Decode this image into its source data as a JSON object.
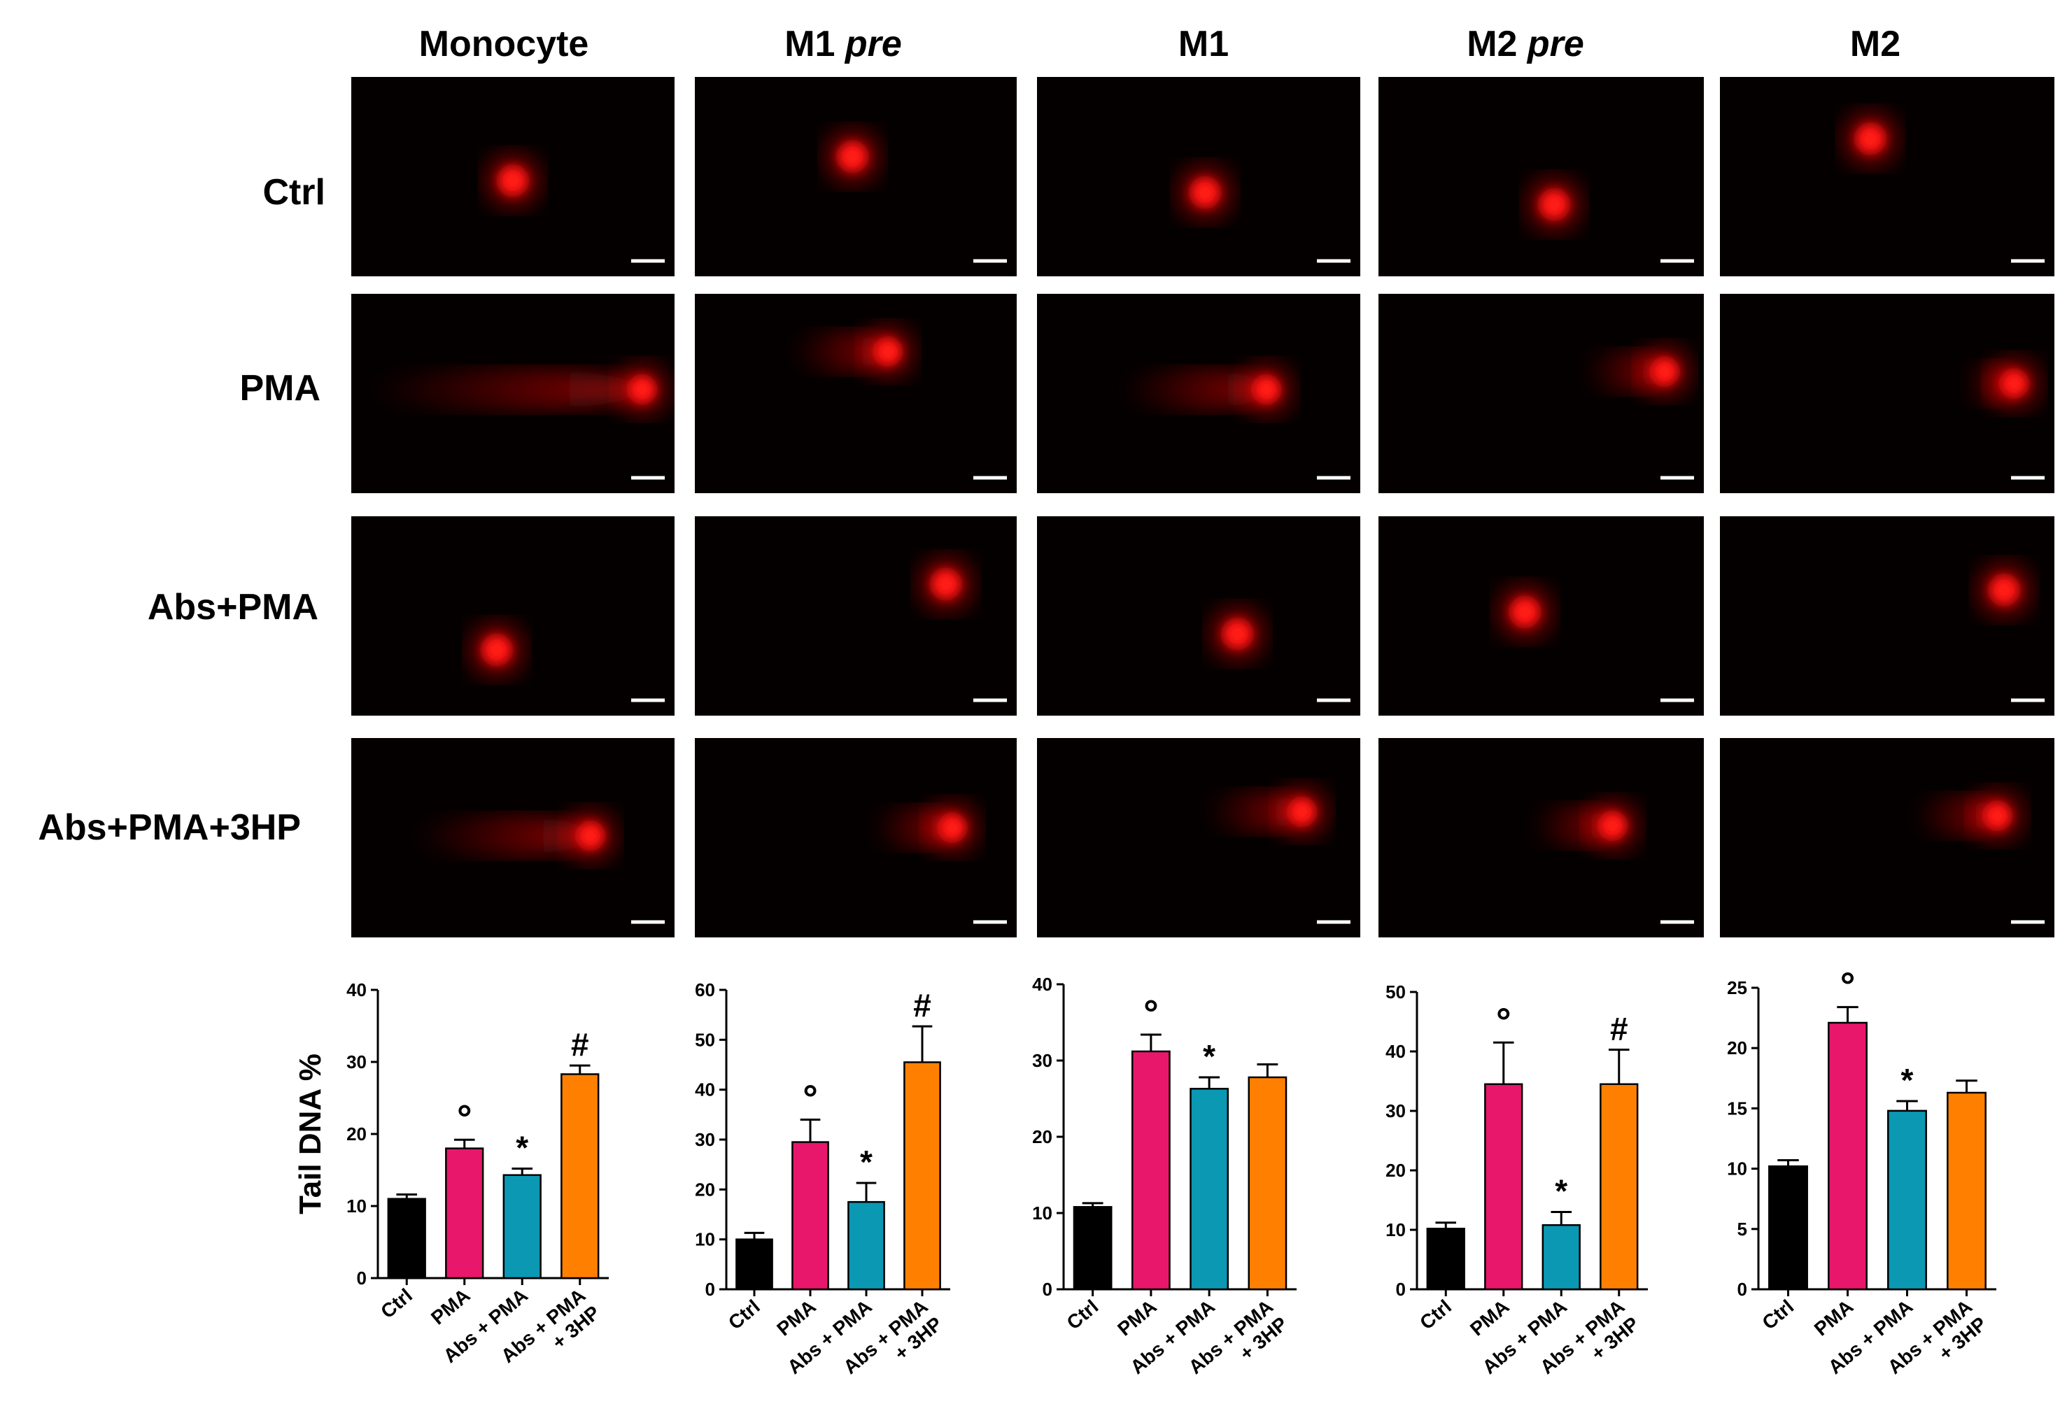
{
  "figure": {
    "columns": [
      {
        "label": "Monocyte",
        "italic": ""
      },
      {
        "label": "M1 ",
        "italic": "pre"
      },
      {
        "label": "M1",
        "italic": ""
      },
      {
        "label": "M2 ",
        "italic": "pre"
      },
      {
        "label": "M2",
        "italic": ""
      }
    ],
    "rows": [
      "Ctrl",
      "PMA",
      "Abs+PMA",
      "Abs+PMA+3HP"
    ],
    "colors": {
      "Ctrl": "#000000",
      "PMA": "#e8176b",
      "Abs + PMA": "#0b98b3",
      "Abs + PMA + 3HP": "#ff8000",
      "background": "#050000",
      "nucleus": "#ff1a1a"
    },
    "micrographs": [
      [
        {
          "head": [
            0.5,
            0.52
          ],
          "tail": 0.0
        },
        {
          "head": [
            0.49,
            0.4
          ],
          "tail": 0.0
        },
        {
          "head": [
            0.52,
            0.58
          ],
          "tail": 0.0
        },
        {
          "head": [
            0.54,
            0.64
          ],
          "tail": 0.0
        },
        {
          "head": [
            0.45,
            0.31
          ],
          "tail": 0.0
        }
      ],
      [
        {
          "head": [
            0.9,
            0.48
          ],
          "tail": 0.85
        },
        {
          "head": [
            0.6,
            0.29
          ],
          "tail": 0.3
        },
        {
          "head": [
            0.71,
            0.48
          ],
          "tail": 0.45
        },
        {
          "head": [
            0.88,
            0.39
          ],
          "tail": 0.25
        },
        {
          "head": [
            0.88,
            0.45
          ],
          "tail": 0.15
        }
      ],
      [
        {
          "head": [
            0.45,
            0.67
          ],
          "tail": 0.0
        },
        {
          "head": [
            0.78,
            0.34
          ],
          "tail": 0.0
        },
        {
          "head": [
            0.62,
            0.59
          ],
          "tail": 0.0
        },
        {
          "head": [
            0.45,
            0.48
          ],
          "tail": 0.0
        },
        {
          "head": [
            0.85,
            0.37
          ],
          "tail": 0.0
        }
      ],
      [
        {
          "head": [
            0.74,
            0.49
          ],
          "tail": 0.55
        },
        {
          "head": [
            0.8,
            0.45
          ],
          "tail": 0.25
        },
        {
          "head": [
            0.82,
            0.37
          ],
          "tail": 0.3
        },
        {
          "head": [
            0.72,
            0.44
          ],
          "tail": 0.25
        },
        {
          "head": [
            0.83,
            0.39
          ],
          "tail": 0.25
        }
      ]
    ]
  },
  "chart_data": [
    {
      "type": "bar",
      "panel": "Monocyte",
      "ylabel": "Tail DNA %",
      "categories": [
        "Ctrl",
        "PMA",
        "Abs + PMA",
        "Abs + PMA + 3HP"
      ],
      "values": [
        11,
        18,
        14.3,
        28.3
      ],
      "errors": [
        0.6,
        1.2,
        0.9,
        1.2
      ],
      "annotations": [
        "",
        "°",
        "*",
        "#"
      ],
      "ylim": [
        0,
        40
      ],
      "yticks": [
        0,
        10,
        20,
        30,
        40
      ],
      "grid": false
    },
    {
      "type": "bar",
      "panel": "M1 pre",
      "ylabel": "",
      "categories": [
        "Ctrl",
        "PMA",
        "Abs + PMA",
        "Abs + PMA + 3HP"
      ],
      "values": [
        10,
        29.5,
        17.5,
        45.5
      ],
      "errors": [
        1.3,
        4.5,
        3.8,
        7.2
      ],
      "annotations": [
        "",
        "°",
        "*",
        "#"
      ],
      "ylim": [
        0,
        60
      ],
      "yticks": [
        0,
        10,
        20,
        30,
        40,
        50,
        60
      ],
      "grid": false
    },
    {
      "type": "bar",
      "panel": "M1",
      "ylabel": "",
      "categories": [
        "Ctrl",
        "PMA",
        "Abs + PMA",
        "Abs + PMA + 3HP"
      ],
      "values": [
        10.8,
        31.2,
        26.3,
        27.8
      ],
      "errors": [
        0.5,
        2.2,
        1.5,
        1.7
      ],
      "annotations": [
        "",
        "°",
        "*",
        ""
      ],
      "ylim": [
        0,
        40
      ],
      "yticks": [
        0,
        10,
        20,
        30,
        40
      ],
      "grid": false
    },
    {
      "type": "bar",
      "panel": "M2 pre",
      "ylabel": "",
      "categories": [
        "Ctrl",
        "PMA",
        "Abs + PMA",
        "Abs + PMA + 3HP"
      ],
      "values": [
        10.2,
        34.5,
        10.8,
        34.5
      ],
      "errors": [
        1.0,
        7.0,
        2.2,
        5.8
      ],
      "annotations": [
        "",
        "°",
        "*",
        "#"
      ],
      "ylim": [
        0,
        50
      ],
      "yticks": [
        0,
        10,
        20,
        30,
        40,
        50
      ],
      "grid": false
    },
    {
      "type": "bar",
      "panel": "M2",
      "ylabel": "",
      "categories": [
        "Ctrl",
        "PMA",
        "Abs + PMA",
        "Abs + PMA + 3HP"
      ],
      "values": [
        10.2,
        22.1,
        14.8,
        16.3
      ],
      "errors": [
        0.5,
        1.3,
        0.8,
        1.0
      ],
      "annotations": [
        "",
        "°",
        "*",
        ""
      ],
      "ylim": [
        0,
        25
      ],
      "yticks": [
        0,
        5,
        10,
        15,
        20,
        25
      ],
      "grid": false
    }
  ]
}
